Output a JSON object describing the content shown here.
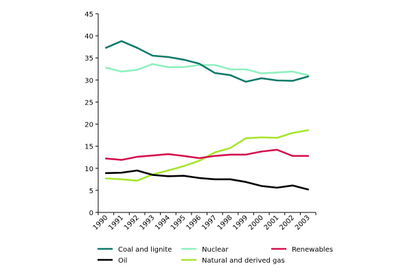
{
  "chart_data": {
    "type": "line",
    "title": "",
    "xlabel": "",
    "ylabel": "",
    "ylim": [
      0,
      45
    ],
    "y_ticks": [
      "0",
      "5",
      "10",
      "15",
      "20",
      "25",
      "30",
      "35",
      "40",
      "45"
    ],
    "categories": [
      "1990",
      "1991",
      "1992",
      "1993",
      "1994",
      "1995",
      "1996",
      "1997",
      "1998",
      "1999",
      "2000",
      "2001",
      "2002",
      "2003"
    ],
    "grid": false,
    "legend_position": "bottom",
    "series": [
      {
        "name": "Coal and lignite",
        "color": "#0e7a6a",
        "values": [
          37.3,
          38.8,
          37.3,
          35.5,
          35.2,
          34.6,
          33.7,
          31.6,
          31.1,
          29.6,
          30.4,
          29.9,
          29.8,
          30.8
        ]
      },
      {
        "name": "Nuclear",
        "color": "#8ff0c0",
        "values": [
          32.8,
          31.9,
          32.3,
          33.6,
          32.9,
          32.9,
          33.4,
          33.4,
          32.4,
          32.4,
          31.5,
          31.7,
          31.9,
          31.1
        ]
      },
      {
        "name": "Renewables",
        "color": "#d4124e",
        "values": [
          12.2,
          11.9,
          12.6,
          12.9,
          13.2,
          12.8,
          12.3,
          12.8,
          13.1,
          13.1,
          13.8,
          14.2,
          12.8,
          12.8
        ]
      },
      {
        "name": "Oil",
        "color": "#000000",
        "values": [
          8.9,
          9.0,
          9.5,
          8.5,
          8.2,
          8.3,
          7.8,
          7.5,
          7.5,
          6.9,
          6.0,
          5.6,
          6.1,
          5.2
        ]
      },
      {
        "name": "Natural and derived gas",
        "color": "#a6e62c",
        "values": [
          7.7,
          7.5,
          7.2,
          8.6,
          9.5,
          10.5,
          11.7,
          13.6,
          14.6,
          16.8,
          17.0,
          16.9,
          18.0,
          18.6
        ]
      }
    ]
  }
}
